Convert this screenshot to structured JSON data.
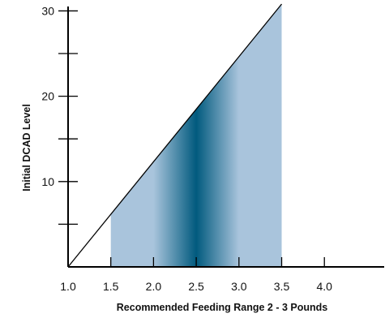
{
  "chart_data": {
    "type": "area",
    "title": "",
    "xlabel": "Recommended Feeding Range 2 - 3 Pounds",
    "ylabel": "Initial DCAD Level",
    "xlim": [
      1.0,
      4.7
    ],
    "ylim": [
      0,
      30.8
    ],
    "x_ticks": [
      1.0,
      1.5,
      2.0,
      2.5,
      3.0,
      3.5,
      4.0
    ],
    "x_tick_labels": [
      "1.0",
      "1.5",
      "2.0",
      "2.5",
      "3.0",
      "3.5",
      "4.0"
    ],
    "y_ticks": [
      5,
      10,
      15,
      20,
      25,
      30
    ],
    "y_tick_labels": [
      "",
      "10",
      "",
      "20",
      "",
      "30"
    ],
    "diagonal_line": {
      "x": [
        1.0,
        3.5
      ],
      "y": [
        0,
        30.8
      ]
    },
    "shaded_band": {
      "x_start": 1.5,
      "x_end": 3.5,
      "peak_x": 2.5
    },
    "colors": {
      "light": "#a9c4dc",
      "dark": "#015a7e",
      "axis": "#000000"
    }
  }
}
